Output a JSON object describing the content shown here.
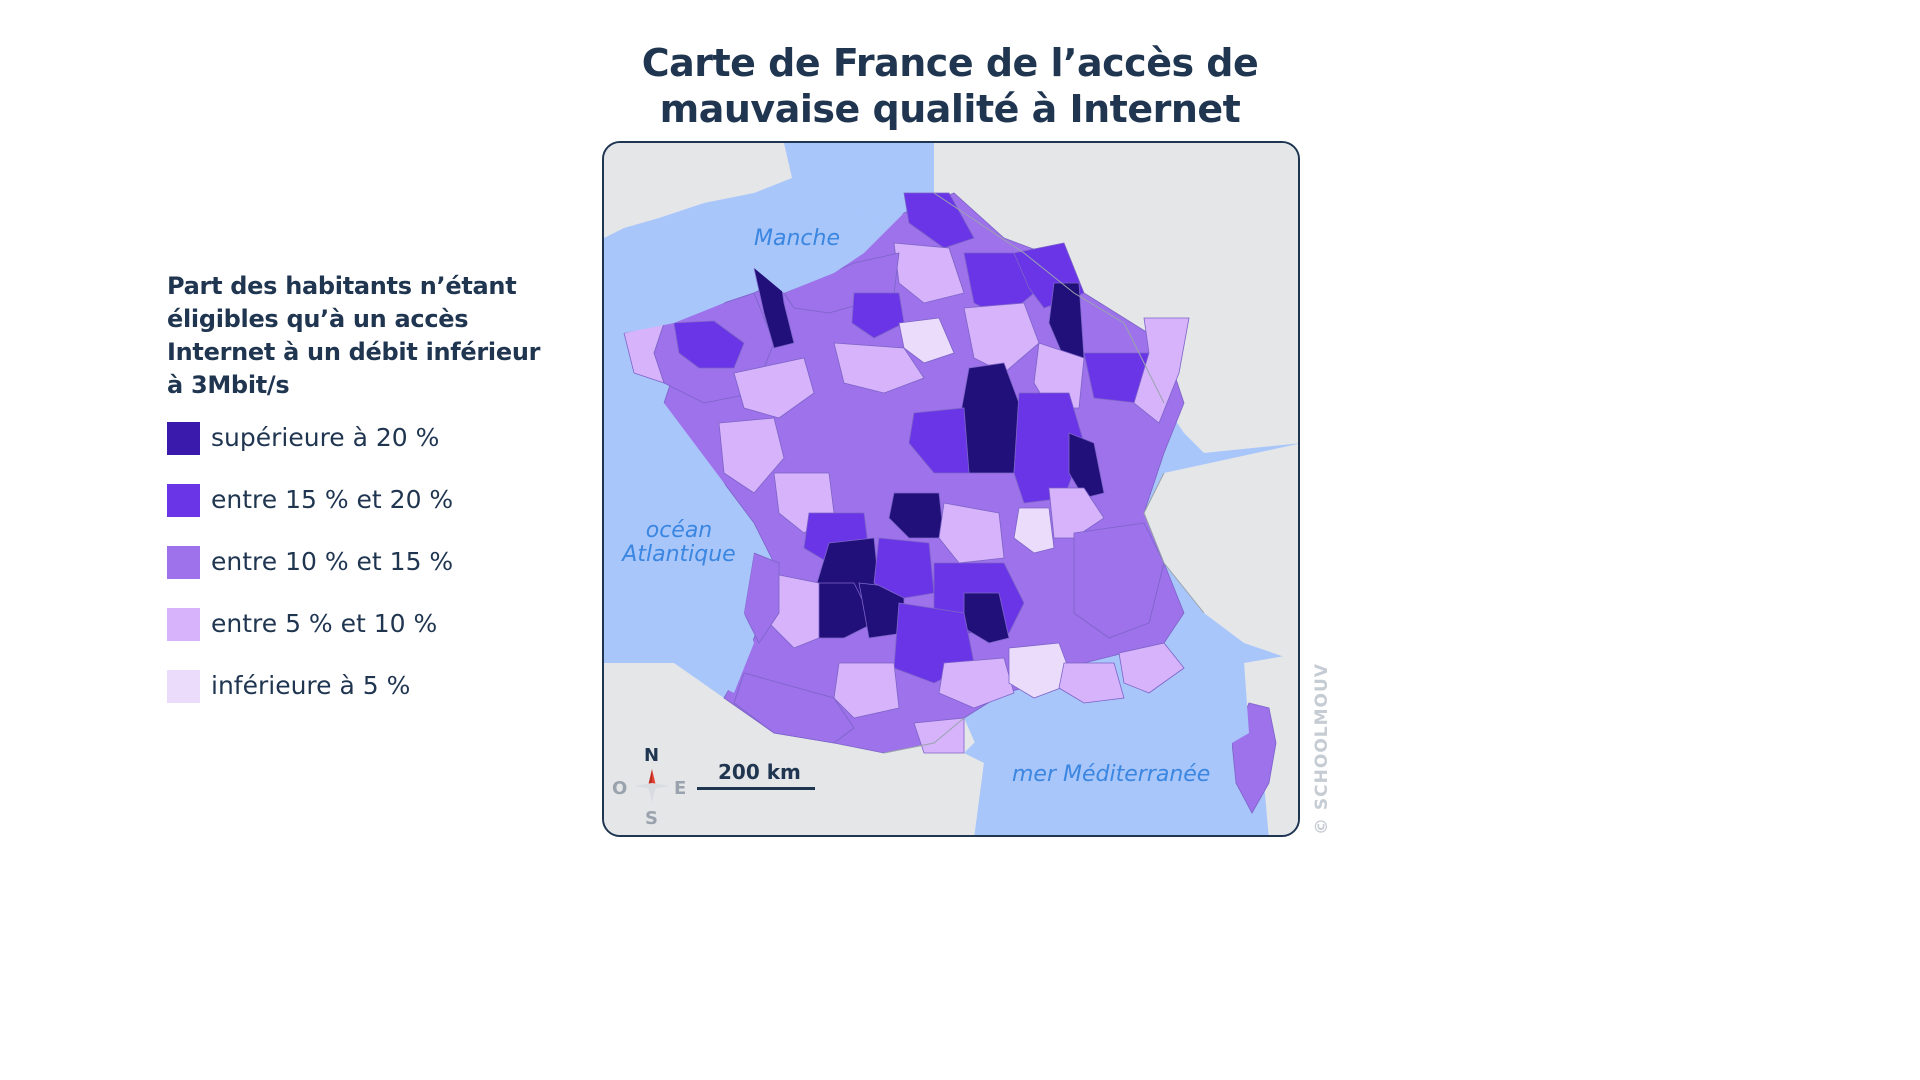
{
  "title_line1": "Carte de France de l’accès de",
  "title_line2": "mauvaise qualité à Internet",
  "legend": {
    "title_lines": [
      "Part des habitants n’étant",
      "éligibles qu’à un accès",
      "Internet à un débit inférieur",
      "à 3Mbit/s"
    ],
    "items": [
      {
        "label": "supérieure à 20 %",
        "color": "#3a1aad"
      },
      {
        "label": "entre 15 % et 20 %",
        "color": "#6a35e6"
      },
      {
        "label": "entre 10 % et 15 %",
        "color": "#9d72ea"
      },
      {
        "label": "entre 5 % et 10 %",
        "color": "#d6b3fa"
      },
      {
        "label": "inférieure à 5 %",
        "color": "#ecdcfc"
      }
    ]
  },
  "map": {
    "sea_labels": {
      "manche": "Manche",
      "ocean_line1": "océan",
      "ocean_line2": "Atlantique",
      "mediterranee": "mer Méditerranée"
    },
    "colors": {
      "sea": "#a9c6fb",
      "land_neighbors": "#e4e6e8",
      "border": "#1f3550",
      "dark": "#22107a"
    },
    "scale_label": "200 km",
    "compass": {
      "n": "N",
      "s": "S",
      "e": "E",
      "o": "O"
    }
  },
  "watermark": "© SCHOOLMOUV"
}
